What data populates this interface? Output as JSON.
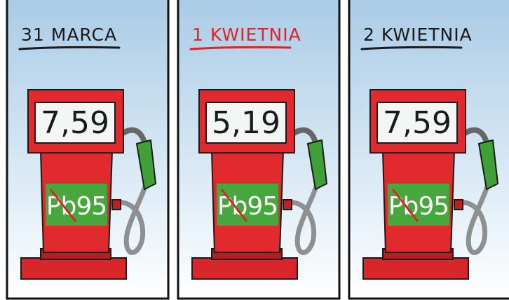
{
  "panels": [
    {
      "date": "31 MARCA",
      "price": "7,59",
      "fuel": "Pb95"
    },
    {
      "date": "1 KWIETNIA",
      "price": "5,19",
      "fuel": "Pb95"
    },
    {
      "date": "2 KWIETNIA",
      "price": "7,59",
      "fuel": "Pb95"
    }
  ]
}
